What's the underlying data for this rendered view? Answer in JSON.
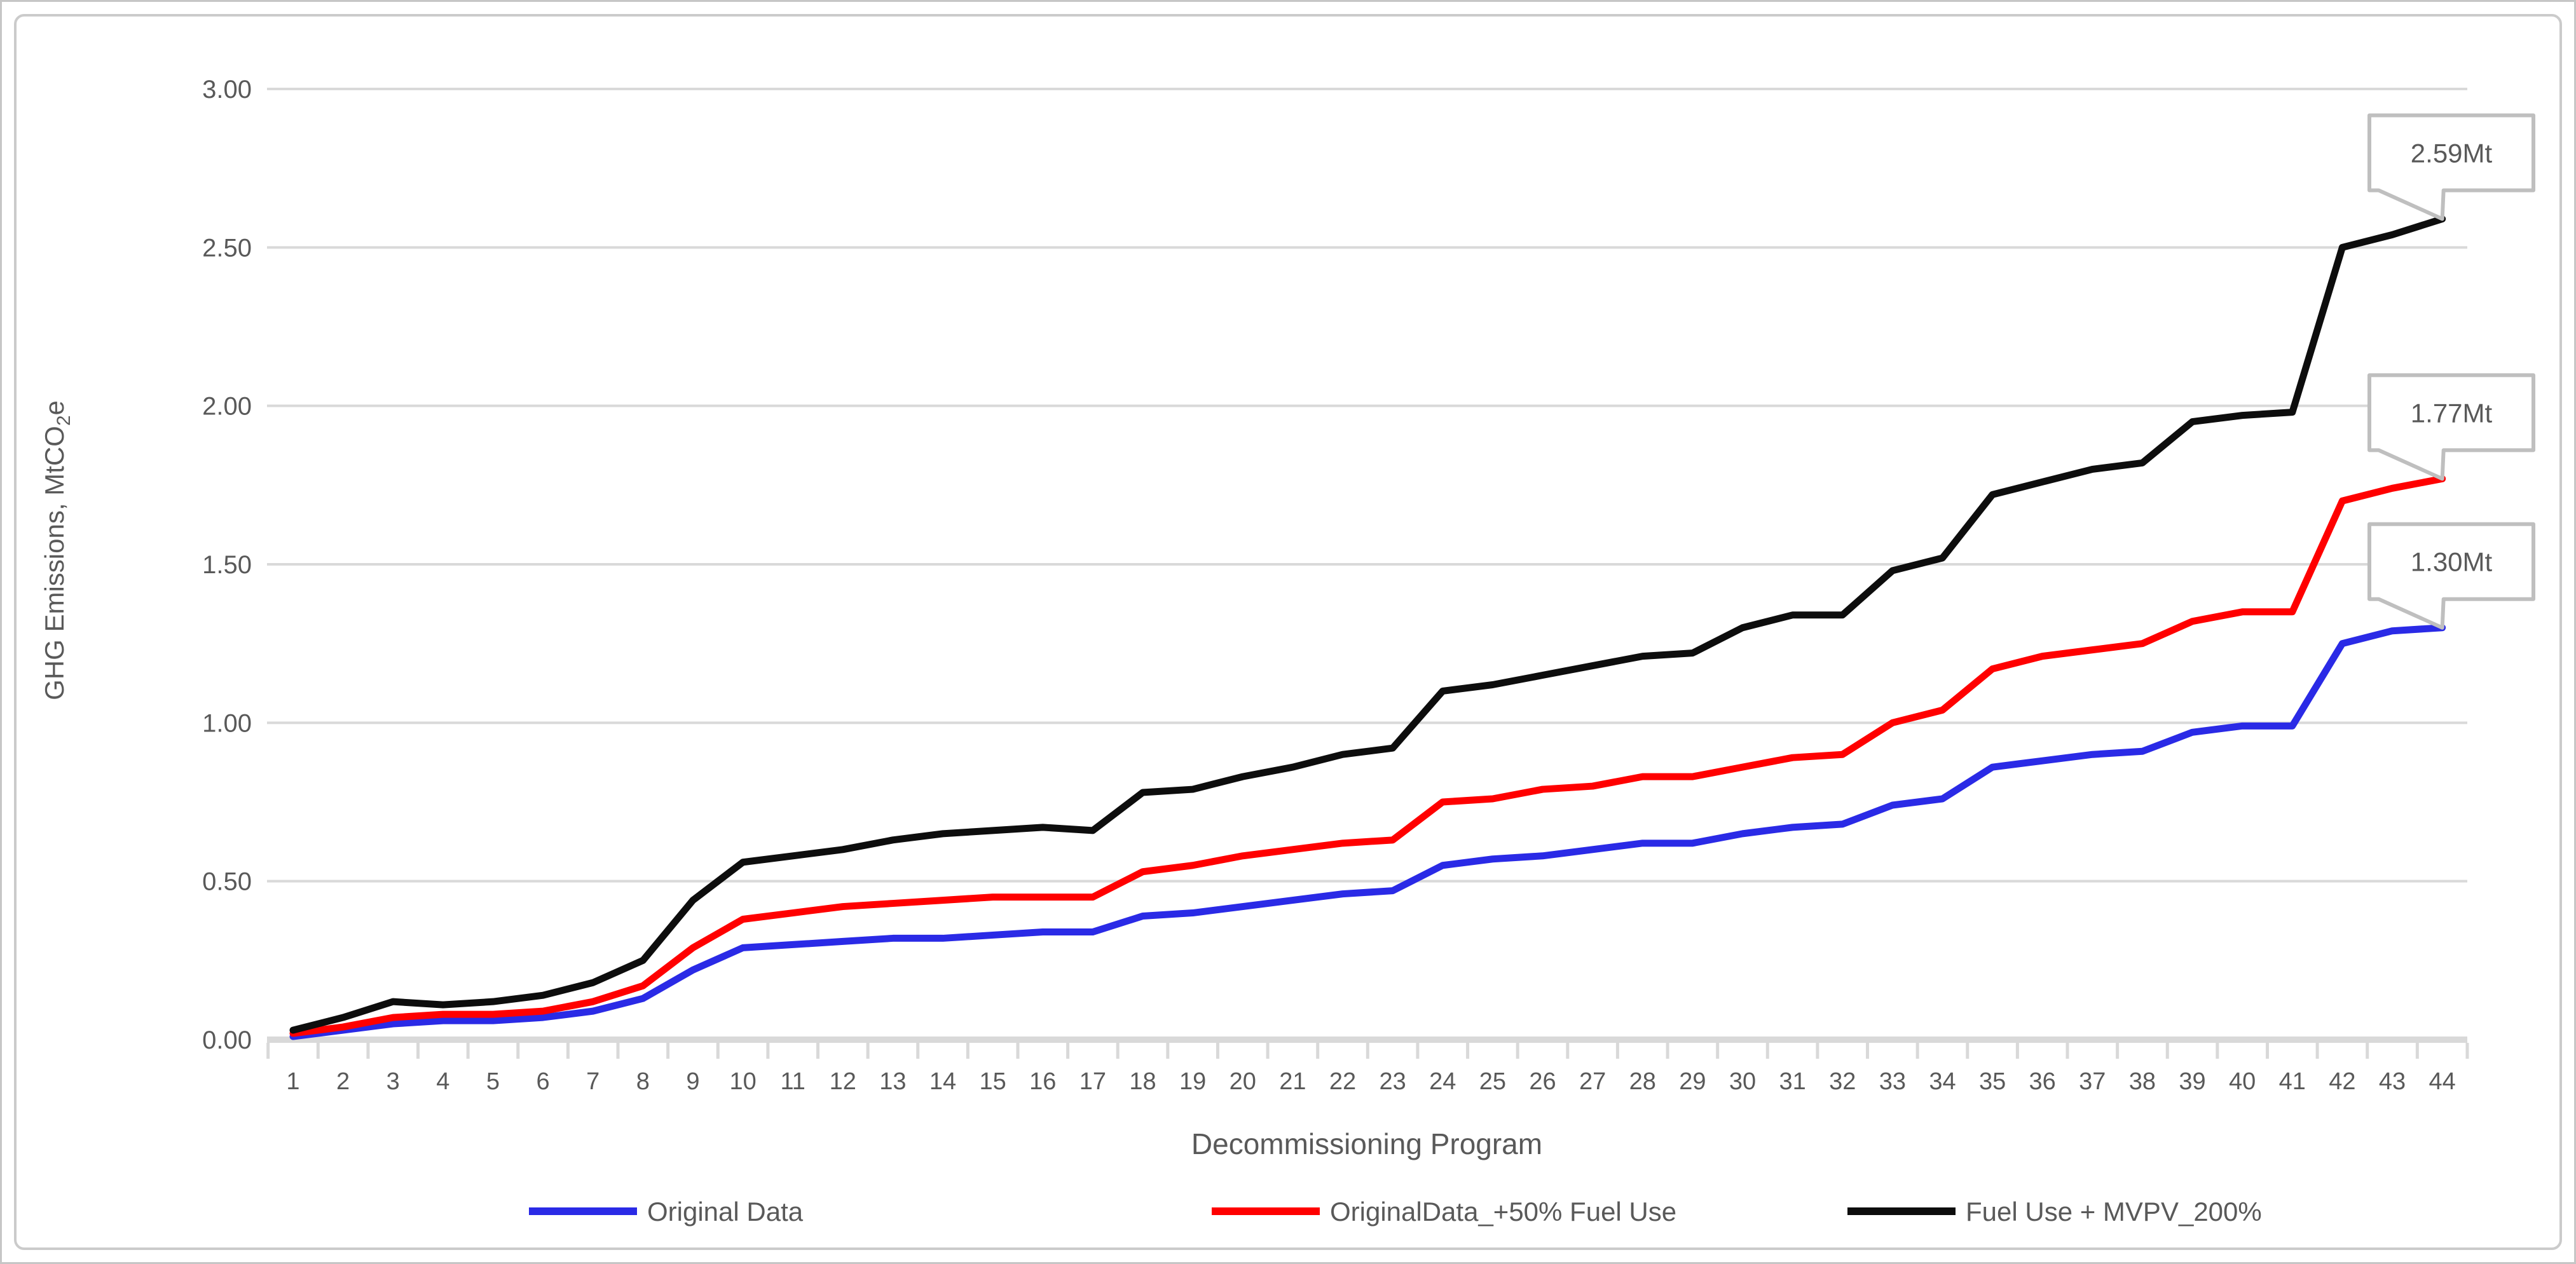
{
  "chart_data": {
    "type": "line",
    "title": "",
    "xlabel": "Decommissioning Program",
    "ylabel": "GHG Emissions, MtCO2e",
    "ylabel_parts": {
      "prefix": "GHG Emissions, MtCO",
      "sub": "2",
      "suffix": "e"
    },
    "ylim": [
      0,
      3
    ],
    "ytick_step": 0.5,
    "ytick_labels": [
      "0.00",
      "0.50",
      "1.00",
      "1.50",
      "2.00",
      "2.50",
      "3.00"
    ],
    "grid": "horizontal-only",
    "legend_position": "bottom",
    "categories": [
      1,
      2,
      3,
      4,
      5,
      6,
      7,
      8,
      9,
      10,
      11,
      12,
      13,
      14,
      15,
      16,
      17,
      18,
      19,
      20,
      21,
      22,
      23,
      24,
      25,
      26,
      27,
      28,
      29,
      30,
      31,
      32,
      33,
      34,
      35,
      36,
      37,
      38,
      39,
      40,
      41,
      42,
      43,
      44
    ],
    "series": [
      {
        "name": "Original Data",
        "color": "#2A2AE6",
        "values": [
          0.01,
          0.03,
          0.05,
          0.06,
          0.06,
          0.07,
          0.09,
          0.13,
          0.22,
          0.29,
          0.3,
          0.31,
          0.32,
          0.32,
          0.33,
          0.34,
          0.34,
          0.39,
          0.4,
          0.42,
          0.44,
          0.46,
          0.47,
          0.55,
          0.57,
          0.58,
          0.6,
          0.62,
          0.62,
          0.65,
          0.67,
          0.68,
          0.74,
          0.76,
          0.86,
          0.88,
          0.9,
          0.91,
          0.97,
          0.99,
          0.99,
          1.25,
          1.29,
          1.3
        ]
      },
      {
        "name": "OriginalData_+50% Fuel Use",
        "color": "#FF0000",
        "values": [
          0.02,
          0.04,
          0.07,
          0.08,
          0.08,
          0.09,
          0.12,
          0.17,
          0.29,
          0.38,
          0.4,
          0.42,
          0.43,
          0.44,
          0.45,
          0.45,
          0.45,
          0.53,
          0.55,
          0.58,
          0.6,
          0.62,
          0.63,
          0.75,
          0.76,
          0.79,
          0.8,
          0.83,
          0.83,
          0.86,
          0.89,
          0.9,
          1.0,
          1.04,
          1.17,
          1.21,
          1.23,
          1.25,
          1.32,
          1.35,
          1.35,
          1.7,
          1.74,
          1.77
        ]
      },
      {
        "name": "Fuel Use + MVPV_200%",
        "color": "#0D0D0D",
        "values": [
          0.03,
          0.07,
          0.12,
          0.11,
          0.12,
          0.14,
          0.18,
          0.25,
          0.44,
          0.56,
          0.58,
          0.6,
          0.63,
          0.65,
          0.66,
          0.67,
          0.66,
          0.78,
          0.79,
          0.83,
          0.86,
          0.9,
          0.92,
          1.1,
          1.12,
          1.15,
          1.18,
          1.21,
          1.22,
          1.3,
          1.34,
          1.34,
          1.48,
          1.52,
          1.72,
          1.76,
          1.8,
          1.82,
          1.95,
          1.97,
          1.98,
          2.5,
          2.54,
          2.59
        ]
      }
    ],
    "callouts": [
      {
        "label": "2.59Mt",
        "series_index": 2,
        "category": 44,
        "value": 2.59
      },
      {
        "label": "1.77Mt",
        "series_index": 1,
        "category": 44,
        "value": 1.77
      },
      {
        "label": "1.30Mt",
        "series_index": 0,
        "category": 44,
        "value": 1.3
      }
    ],
    "colors": {
      "text": "#595959",
      "gridline": "#D9D9D9",
      "axis_line": "#D9D9D9",
      "callout_border": "#BFBFBF",
      "callout_fill": "#FFFFFF"
    }
  }
}
